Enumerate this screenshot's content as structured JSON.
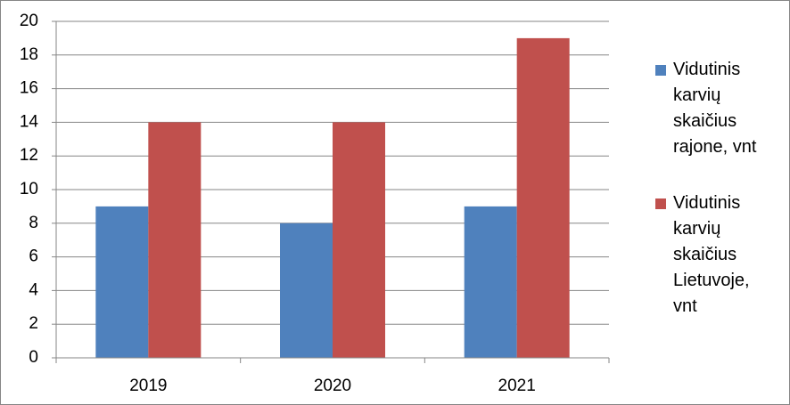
{
  "chart_data": {
    "type": "bar",
    "categories": [
      "2019",
      "2020",
      "2021"
    ],
    "series": [
      {
        "name": "Vidutinis karvių skaičius rajone, vnt",
        "color": "#4f81bd",
        "values": [
          9,
          8,
          9
        ]
      },
      {
        "name": "Vidutinis karvių skaičius Lietuvoje, vnt",
        "color": "#c0504d",
        "values": [
          14,
          14,
          19
        ]
      }
    ],
    "ylim": [
      0,
      20
    ],
    "yticks": [
      0,
      2,
      4,
      6,
      8,
      10,
      12,
      14,
      16,
      18,
      20
    ],
    "grid": true,
    "legend": "right"
  }
}
